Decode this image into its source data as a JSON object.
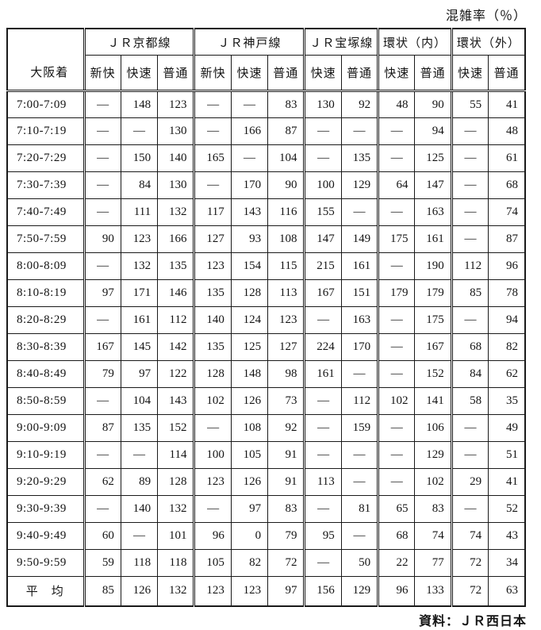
{
  "title": "混雑率（％）",
  "source": "資料：ＪＲ西日本",
  "table": {
    "corner_label": "大阪着",
    "groups": [
      {
        "label": "ＪＲ京都線",
        "cols": [
          "新快",
          "快速",
          "普通"
        ]
      },
      {
        "label": "ＪＲ神戸線",
        "cols": [
          "新快",
          "快速",
          "普通"
        ]
      },
      {
        "label": "ＪＲ宝塚線",
        "cols": [
          "快速",
          "普通"
        ]
      },
      {
        "label": "環状（内）",
        "cols": [
          "快速",
          "普通"
        ]
      },
      {
        "label": "環状（外）",
        "cols": [
          "快速",
          "普通"
        ]
      }
    ],
    "rows": [
      {
        "time": "7:00-7:09",
        "values": [
          "—",
          "148",
          "123",
          "—",
          "—",
          "83",
          "130",
          "92",
          "48",
          "90",
          "55",
          "41"
        ]
      },
      {
        "time": "7:10-7:19",
        "values": [
          "—",
          "—",
          "130",
          "—",
          "166",
          "87",
          "—",
          "—",
          "—",
          "94",
          "—",
          "48"
        ]
      },
      {
        "time": "7:20-7:29",
        "values": [
          "—",
          "150",
          "140",
          "165",
          "—",
          "104",
          "—",
          "135",
          "—",
          "125",
          "—",
          "61"
        ]
      },
      {
        "time": "7:30-7:39",
        "values": [
          "—",
          "84",
          "130",
          "—",
          "170",
          "90",
          "100",
          "129",
          "64",
          "147",
          "—",
          "68"
        ]
      },
      {
        "time": "7:40-7:49",
        "values": [
          "—",
          "111",
          "132",
          "117",
          "143",
          "116",
          "155",
          "—",
          "—",
          "163",
          "—",
          "74"
        ]
      },
      {
        "time": "7:50-7:59",
        "values": [
          "90",
          "123",
          "166",
          "127",
          "93",
          "108",
          "147",
          "149",
          "175",
          "161",
          "—",
          "87"
        ]
      },
      {
        "time": "8:00-8:09",
        "values": [
          "—",
          "132",
          "135",
          "123",
          "154",
          "115",
          "215",
          "161",
          "—",
          "190",
          "112",
          "96"
        ]
      },
      {
        "time": "8:10-8:19",
        "values": [
          "97",
          "171",
          "146",
          "135",
          "128",
          "113",
          "167",
          "151",
          "179",
          "179",
          "85",
          "78"
        ]
      },
      {
        "time": "8:20-8:29",
        "values": [
          "—",
          "161",
          "112",
          "140",
          "124",
          "123",
          "—",
          "163",
          "—",
          "175",
          "—",
          "94"
        ]
      },
      {
        "time": "8:30-8:39",
        "values": [
          "167",
          "145",
          "142",
          "135",
          "125",
          "127",
          "224",
          "170",
          "—",
          "167",
          "68",
          "82"
        ]
      },
      {
        "time": "8:40-8:49",
        "values": [
          "79",
          "97",
          "122",
          "128",
          "148",
          "98",
          "161",
          "—",
          "—",
          "152",
          "84",
          "62"
        ]
      },
      {
        "time": "8:50-8:59",
        "values": [
          "—",
          "104",
          "143",
          "102",
          "126",
          "73",
          "—",
          "112",
          "102",
          "141",
          "58",
          "35"
        ]
      },
      {
        "time": "9:00-9:09",
        "values": [
          "87",
          "135",
          "152",
          "—",
          "108",
          "92",
          "—",
          "159",
          "—",
          "106",
          "—",
          "49"
        ]
      },
      {
        "time": "9:10-9:19",
        "values": [
          "—",
          "—",
          "114",
          "100",
          "105",
          "91",
          "—",
          "—",
          "—",
          "129",
          "—",
          "51"
        ]
      },
      {
        "time": "9:20-9:29",
        "values": [
          "62",
          "89",
          "128",
          "123",
          "126",
          "91",
          "113",
          "—",
          "—",
          "102",
          "29",
          "41"
        ]
      },
      {
        "time": "9:30-9:39",
        "values": [
          "—",
          "140",
          "132",
          "—",
          "97",
          "83",
          "—",
          "81",
          "65",
          "83",
          "—",
          "52"
        ]
      },
      {
        "time": "9:40-9:49",
        "values": [
          "60",
          "—",
          "101",
          "96",
          "0",
          "79",
          "95",
          "—",
          "68",
          "74",
          "74",
          "43"
        ]
      },
      {
        "time": "9:50-9:59",
        "values": [
          "59",
          "118",
          "118",
          "105",
          "82",
          "72",
          "—",
          "50",
          "22",
          "77",
          "72",
          "34"
        ]
      },
      {
        "time": "平　均",
        "average": true,
        "values": [
          "85",
          "126",
          "132",
          "123",
          "123",
          "97",
          "156",
          "129",
          "96",
          "133",
          "72",
          "63"
        ]
      }
    ]
  }
}
